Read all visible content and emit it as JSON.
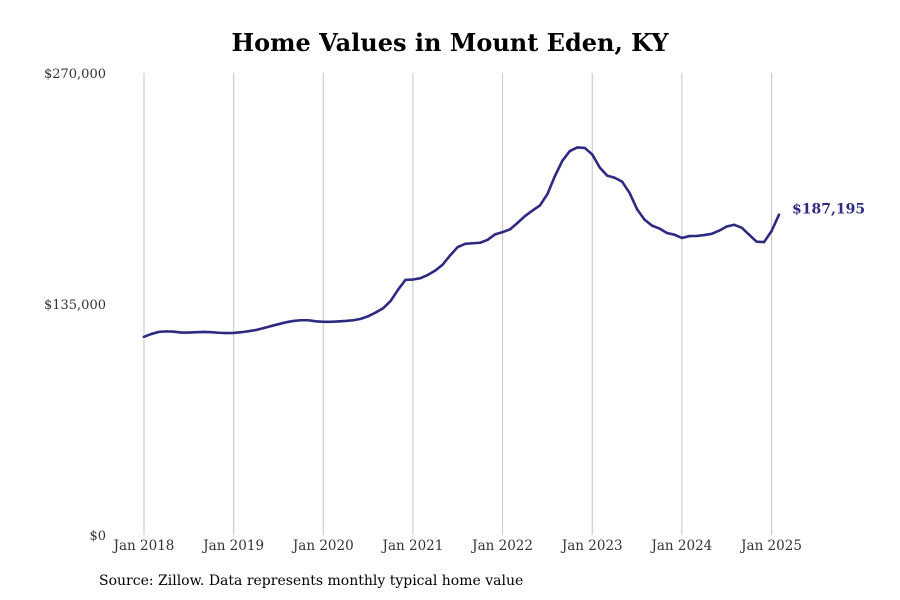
{
  "chart_data": {
    "type": "line",
    "title": "Home Values in Mount Eden, KY",
    "xlabel": "",
    "ylabel": "",
    "ylim": [
      0,
      270000
    ],
    "yticks": [
      {
        "value": 0,
        "label": "$0"
      },
      {
        "value": 135000,
        "label": "$135,000"
      },
      {
        "value": 270000,
        "label": "$270,000"
      }
    ],
    "xlim": [
      "2018-01",
      "2025-02"
    ],
    "xticks": [
      "Jan 2018",
      "Jan 2019",
      "Jan 2020",
      "Jan 2021",
      "Jan 2022",
      "Jan 2023",
      "Jan 2024",
      "Jan 2025"
    ],
    "grid": "vertical",
    "series": [
      {
        "color": "#2e2a82",
        "x": [
          "2018-01",
          "2018-02",
          "2018-03",
          "2018-04",
          "2018-05",
          "2018-06",
          "2018-07",
          "2018-08",
          "2018-09",
          "2018-10",
          "2018-11",
          "2018-12",
          "2019-01",
          "2019-02",
          "2019-03",
          "2019-04",
          "2019-05",
          "2019-06",
          "2019-07",
          "2019-08",
          "2019-09",
          "2019-10",
          "2019-11",
          "2019-12",
          "2020-01",
          "2020-02",
          "2020-03",
          "2020-04",
          "2020-05",
          "2020-06",
          "2020-07",
          "2020-08",
          "2020-09",
          "2020-10",
          "2020-11",
          "2020-12",
          "2021-01",
          "2021-02",
          "2021-03",
          "2021-04",
          "2021-05",
          "2021-06",
          "2021-07",
          "2021-08",
          "2021-09",
          "2021-10",
          "2021-11",
          "2021-12",
          "2022-01",
          "2022-02",
          "2022-03",
          "2022-04",
          "2022-05",
          "2022-06",
          "2022-07",
          "2022-08",
          "2022-09",
          "2022-10",
          "2022-11",
          "2022-12",
          "2023-01",
          "2023-02",
          "2023-03",
          "2023-04",
          "2023-05",
          "2023-06",
          "2023-07",
          "2023-08",
          "2023-09",
          "2023-10",
          "2023-11",
          "2023-12",
          "2024-01",
          "2024-02",
          "2024-03",
          "2024-04",
          "2024-05",
          "2024-06",
          "2024-07",
          "2024-08",
          "2024-09",
          "2024-10",
          "2024-11",
          "2024-12",
          "2025-01",
          "2025-02"
        ],
        "values": [
          115800,
          117500,
          118700,
          119000,
          118800,
          118300,
          118300,
          118500,
          118700,
          118500,
          118200,
          118000,
          118100,
          118500,
          119100,
          119800,
          120900,
          122100,
          123200,
          124300,
          125100,
          125500,
          125500,
          124900,
          124600,
          124600,
          124800,
          125100,
          125500,
          126300,
          127800,
          130000,
          132500,
          136700,
          143300,
          149100,
          149300,
          150100,
          152000,
          154600,
          158100,
          163500,
          168300,
          170200,
          170500,
          170800,
          172500,
          175700,
          177000,
          178600,
          182400,
          186400,
          189600,
          192600,
          199200,
          209700,
          218700,
          224400,
          226500,
          226200,
          222400,
          214800,
          210000,
          208800,
          206500,
          199900,
          190400,
          184300,
          180800,
          179100,
          176500,
          175500,
          173600,
          174700,
          174800,
          175300,
          176000,
          177900,
          180300,
          181300,
          179600,
          175500,
          171400,
          171200,
          177600,
          187195
        ]
      }
    ],
    "end_label": "$187,195",
    "source": "Source: Zillow. Data represents monthly typical home value"
  }
}
